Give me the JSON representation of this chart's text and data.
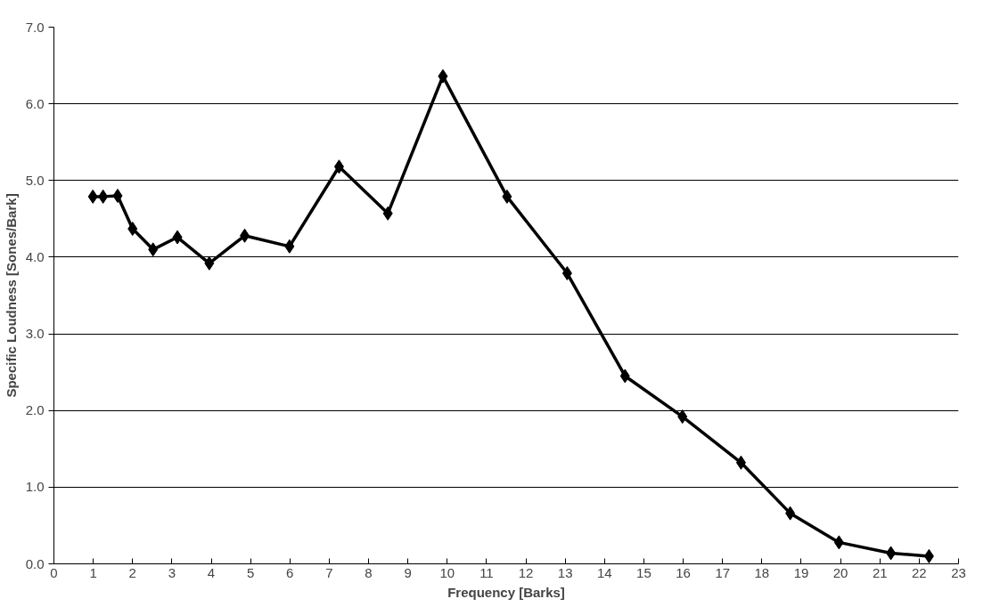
{
  "chart_data": {
    "type": "line",
    "xlabel": "Frequency [Barks]",
    "ylabel": "Specific Loudness [Sones/Bark]",
    "x": [
      0.99,
      1.25,
      1.62,
      2.0,
      2.52,
      3.14,
      3.95,
      4.85,
      5.99,
      7.25,
      8.49,
      9.89,
      11.52,
      13.05,
      14.52,
      15.98,
      17.47,
      18.72,
      19.96,
      21.28,
      22.25
    ],
    "series": [
      {
        "color": "#000000",
        "values": [
          4.79,
          4.79,
          4.8,
          4.37,
          4.1,
          4.26,
          3.92,
          4.28,
          4.14,
          5.18,
          4.57,
          6.36,
          4.79,
          3.79,
          2.45,
          1.92,
          1.32,
          0.66,
          0.28,
          0.14,
          0.1
        ]
      }
    ],
    "xlim": [
      0,
      23
    ],
    "xticks": [
      0,
      1,
      2,
      3,
      4,
      5,
      6,
      7,
      8,
      9,
      10,
      11,
      12,
      13,
      14,
      15,
      16,
      17,
      18,
      19,
      20,
      21,
      22,
      23
    ],
    "ylim": [
      0,
      7
    ],
    "yticks": [
      {
        "value": 0,
        "label": "0.0"
      },
      {
        "value": 1,
        "label": "1.0"
      },
      {
        "value": 2,
        "label": "2.0"
      },
      {
        "value": 3,
        "label": "3.0"
      },
      {
        "value": 4,
        "label": "4.0"
      },
      {
        "value": 5,
        "label": "5.0"
      },
      {
        "value": 6,
        "label": "6.0"
      },
      {
        "value": 7,
        "label": "7.0"
      }
    ],
    "grid": "y",
    "marker": "diamond",
    "line_style": "solid"
  }
}
